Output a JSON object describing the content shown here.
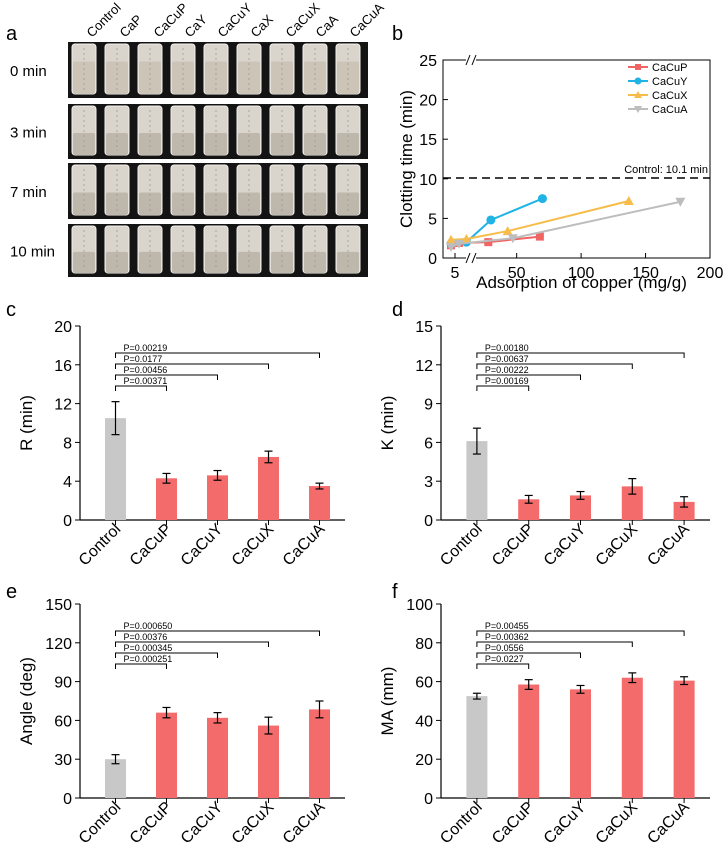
{
  "panel_letters": {
    "a": "a",
    "b": "b",
    "c": "c",
    "d": "d",
    "e": "e",
    "f": "f"
  },
  "photo_panel": {
    "columns": [
      "Control",
      "CaP",
      "CaCuP",
      "CaY",
      "CaCuY",
      "CaX",
      "CaCuX",
      "CaA",
      "CaCuA"
    ],
    "rows": [
      "0 min",
      "3 min",
      "7 min",
      "10 min"
    ]
  },
  "colors": {
    "control": "#c8c8c8",
    "treated": "#f46b6b",
    "CaCuP": "#f06464",
    "CaCuY": "#1fb3e6",
    "CaCuX": "#f7bc4a",
    "CaCuA": "#bdbdbd"
  },
  "chart_data": [
    {
      "id": "b",
      "type": "line",
      "xlabel": "Adsorption of copper (mg/g)",
      "ylabel": "Clotting time (min)",
      "xlim": [
        0,
        200
      ],
      "ylim": [
        0,
        25
      ],
      "axis_break": "x",
      "xticks": [
        "5",
        "50",
        "100",
        "150",
        "200"
      ],
      "yticks": [
        "0",
        "5",
        "10",
        "15",
        "20",
        "25"
      ],
      "reference_line": {
        "y": 10.1,
        "label": "Control: 10.1 min"
      },
      "legend_position": "top-right",
      "series": [
        {
          "name": "CaCuP",
          "marker": "square",
          "points": [
            [
              3,
              1.6
            ],
            [
              7,
              1.9
            ],
            [
              28,
              2.0
            ],
            [
              68,
              2.7
            ]
          ]
        },
        {
          "name": "CaCuY",
          "marker": "circle",
          "points": [
            [
              3,
              1.8
            ],
            [
              11,
              2.0
            ],
            [
              30,
              4.8
            ],
            [
              70,
              7.5
            ]
          ]
        },
        {
          "name": "CaCuX",
          "marker": "triangle-up",
          "points": [
            [
              3,
              2.3
            ],
            [
              11,
              2.4
            ],
            [
              43,
              3.4
            ],
            [
              137,
              7.2
            ]
          ]
        },
        {
          "name": "CaCuA",
          "marker": "triangle-down",
          "points": [
            [
              3,
              1.4
            ],
            [
              7,
              1.8
            ],
            [
              47,
              2.5
            ],
            [
              177,
              7.1
            ]
          ]
        }
      ]
    },
    {
      "id": "c",
      "type": "bar",
      "ylabel": "R (min)",
      "ylim": [
        0,
        20
      ],
      "yticks": [
        "0",
        "4",
        "8",
        "12",
        "16",
        "20"
      ],
      "categories": [
        "Control",
        "CaCuP",
        "CaCuY",
        "CaCuX",
        "CaCuA"
      ],
      "values": [
        10.5,
        4.3,
        4.6,
        6.5,
        3.5
      ],
      "errors": [
        1.7,
        0.5,
        0.5,
        0.6,
        0.3
      ],
      "pvalues": [
        "P=0.00371",
        "P=0.00456",
        "P=0.0177",
        "P=0.00219"
      ]
    },
    {
      "id": "d",
      "type": "bar",
      "ylabel": "K (min)",
      "ylim": [
        0,
        15
      ],
      "yticks": [
        "0",
        "3",
        "6",
        "9",
        "12",
        "15"
      ],
      "categories": [
        "Control",
        "CaCuP",
        "CaCuY",
        "CaCuX",
        "CaCuA"
      ],
      "values": [
        6.1,
        1.6,
        1.9,
        2.6,
        1.4
      ],
      "errors": [
        1.0,
        0.3,
        0.3,
        0.6,
        0.4
      ],
      "pvalues": [
        "P=0.00169",
        "P=0.00222",
        "P=0.00637",
        "P=0.00180"
      ]
    },
    {
      "id": "e",
      "type": "bar",
      "ylabel": "Angle (deg)",
      "ylim": [
        0,
        150
      ],
      "yticks": [
        "0",
        "30",
        "60",
        "90",
        "120",
        "150"
      ],
      "categories": [
        "Control",
        "CaCuP",
        "CaCuY",
        "CaCuX",
        "CaCuA"
      ],
      "values": [
        30,
        66,
        62,
        56,
        68.5
      ],
      "errors": [
        3.5,
        4,
        4,
        6.5,
        6.5
      ],
      "pvalues": [
        "P=0.000251",
        "P=0.000345",
        "P=0.00376",
        "P=0.000650"
      ]
    },
    {
      "id": "f",
      "type": "bar",
      "ylabel": "MA (mm)",
      "ylim": [
        0,
        100
      ],
      "yticks": [
        "0",
        "20",
        "40",
        "60",
        "80",
        "100"
      ],
      "categories": [
        "Control",
        "CaCuP",
        "CaCuY",
        "CaCuX",
        "CaCuA"
      ],
      "values": [
        52.5,
        58.5,
        56,
        62,
        60.5
      ],
      "errors": [
        1.5,
        2.5,
        2,
        2.5,
        2
      ],
      "pvalues": [
        "P=0.0227",
        "P=0.0556",
        "P=0.00362",
        "P=0.00455"
      ]
    }
  ]
}
